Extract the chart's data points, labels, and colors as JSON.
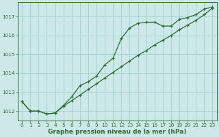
{
  "hours": [
    0,
    1,
    2,
    3,
    4,
    5,
    6,
    7,
    8,
    9,
    10,
    11,
    12,
    13,
    14,
    15,
    16,
    17,
    18,
    19,
    20,
    21,
    22,
    23
  ],
  "pressure_line1": [
    1012.5,
    1012.0,
    1012.0,
    1011.85,
    1011.9,
    1012.25,
    1012.55,
    1012.85,
    1013.15,
    1013.45,
    1013.75,
    1014.05,
    1014.35,
    1014.65,
    1014.95,
    1015.2,
    1015.5,
    1015.75,
    1016.0,
    1016.3,
    1016.55,
    1016.8,
    1017.1,
    1017.45
  ],
  "pressure_line2": [
    1012.5,
    1012.0,
    1012.0,
    1011.85,
    1011.9,
    1012.3,
    1012.75,
    1013.35,
    1013.55,
    1013.85,
    1014.45,
    1014.8,
    1015.85,
    1016.4,
    1016.65,
    1016.7,
    1016.7,
    1016.5,
    1016.5,
    1016.85,
    1016.95,
    1017.1,
    1017.4,
    1017.5
  ],
  "line_color": "#2d6a2d",
  "bg_color": "#cce8e8",
  "grid_color": "#9fcfcf",
  "xlabel": "Graphe pression niveau de la mer (hPa)",
  "ylim": [
    1011.5,
    1017.75
  ],
  "xlim": [
    -0.5,
    23.5
  ],
  "yticks": [
    1012,
    1013,
    1014,
    1015,
    1016,
    1017
  ],
  "xticks": [
    0,
    1,
    2,
    3,
    4,
    5,
    6,
    7,
    8,
    9,
    10,
    11,
    12,
    13,
    14,
    15,
    16,
    17,
    18,
    19,
    20,
    21,
    22,
    23
  ],
  "tick_fontsize": 5.2,
  "xlabel_fontsize": 6.5
}
